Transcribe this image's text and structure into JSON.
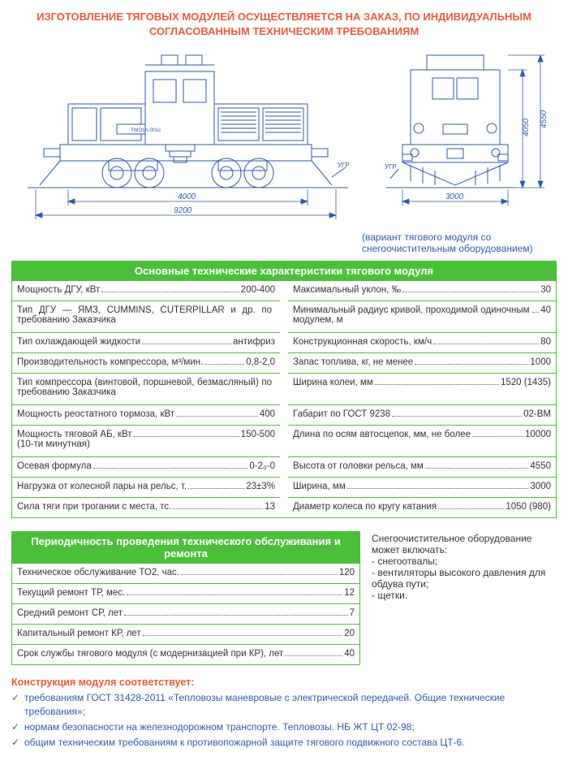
{
  "header": "ИЗГОТОВЛЕНИЕ ТЯГОВЫХ МОДУЛЕЙ ОСУЩЕСТВЛЯЕТСЯ НА ЗАКАЗ, ПО ИНДИВИДУАЛЬНЫМ СОГЛАСОВАННЫМ ТЕХНИЧЕСКИМ ТРЕБОВАНИЯМ",
  "caption": "(вариант тягового модуля со снегоочистительным оборудованием)",
  "drawing": {
    "side": {
      "dim_body": "4000",
      "dim_total": "9200",
      "plate": "ТМЭ1h-001с",
      "ugr": "УГР"
    },
    "front": {
      "dim_width": "3000",
      "dim_h1": "4050",
      "dim_h2": "4550",
      "ugr": "УГР"
    },
    "colors": {
      "stroke": "#2e5aa8",
      "dim_stroke": "#2e5aa8",
      "text": "#2e5aa8",
      "fill": "#ffffff"
    }
  },
  "section1_title": "Основные технические характеристики тягового модуля",
  "specs_left": [
    {
      "label": "Мощность ДГУ, кВт",
      "value": "200-400",
      "dots": true
    },
    {
      "label": "Тип ДГУ — ЯМЗ, CUMMINS, CUTERPILLAR и др. по требованию Заказчика",
      "value": "",
      "dots": false,
      "tall": true
    },
    {
      "label": "Тип охлаждающей жидкости",
      "value": "антифриз",
      "dots": true
    },
    {
      "label": "Производительность компрессора, м³/мин.",
      "value": "0,8-2,0",
      "dots": true
    },
    {
      "label": "Тип компрессора (винтовой, поршневой, безмасляный) по требованию Заказчика",
      "value": "",
      "dots": false,
      "tall": true
    },
    {
      "label": "Мощность реостатного тормоза, кВт",
      "value": "400",
      "dots": true
    },
    {
      "label": "Мощность тяговой АБ, кВт\n(10-ти минутная)",
      "value": "150-500",
      "dots": true,
      "tall": true
    },
    {
      "label": "Осевая формула",
      "value": "0-2₀-0",
      "dots": true
    },
    {
      "label": "Нагрузка от колесной пары на рельс, т.",
      "value": "23±3%",
      "dots": true
    },
    {
      "label": "Сила тяги при трогании с места, тс.",
      "value": "13",
      "dots": true
    }
  ],
  "specs_right": [
    {
      "label": "Максимальный уклон, ‰",
      "value": "30",
      "dots": true
    },
    {
      "label": "Минимальный радиус кривой, проходимой одиночным модулем, м",
      "value": "40",
      "dots": true,
      "tall": true
    },
    {
      "label": "Конструкционная скорость, км/ч",
      "value": "80",
      "dots": true
    },
    {
      "label": "Запас топлива, кг, не менее",
      "value": "1000",
      "dots": true
    },
    {
      "label": "Ширина колеи, мм",
      "value": "1520 (1435)",
      "dots": true,
      "tall": true
    },
    {
      "label": "Габарит по ГОСТ 9238",
      "value": "02-ВМ",
      "dots": true
    },
    {
      "label": "Длина по осям автосцепок, мм, не более",
      "value": "10000",
      "dots": true,
      "tall": true
    },
    {
      "label": "Высота от головки рельса, мм",
      "value": "4550",
      "dots": true
    },
    {
      "label": "Ширина, мм",
      "value": "3000",
      "dots": true
    },
    {
      "label": "Диаметр колеса по кругу катания",
      "value": "1050 (980)",
      "dots": true
    }
  ],
  "section2_title": "Периодичность проведения технического обслуживания и ремонта",
  "maint": [
    {
      "label": "Техническое обслуживание ТО2, час.",
      "value": "120"
    },
    {
      "label": "Текущий ремонт ТР, мес.",
      "value": "12"
    },
    {
      "label": "Средний ремонт СР, лет",
      "value": "7"
    },
    {
      "label": "Капитальный ремонт КР, лет",
      "value": "20"
    },
    {
      "label": "Срок службы тягового модуля (с модернизацией при КР), лет",
      "value": "40"
    }
  ],
  "side_text": "Снегоочистительное оборудование может включать:\n- снегоотвалы;\n- вентиляторы высокого давления для обдува пути;\n- щетки.",
  "compliance_title": "Конструкция модуля соответствует:",
  "compliance": [
    "требованиям ГОСТ 31428-2011 «Тепловозы маневровые с электрической передачей. Общие технические требования»;",
    "нормам безопасности на железнодорожном транспорте. Тепловозы. НБ ЖТ ЦТ 02-98;",
    "общим техническим требованиям к противопожарной защите тягового подвижного состава ЦТ-6."
  ]
}
